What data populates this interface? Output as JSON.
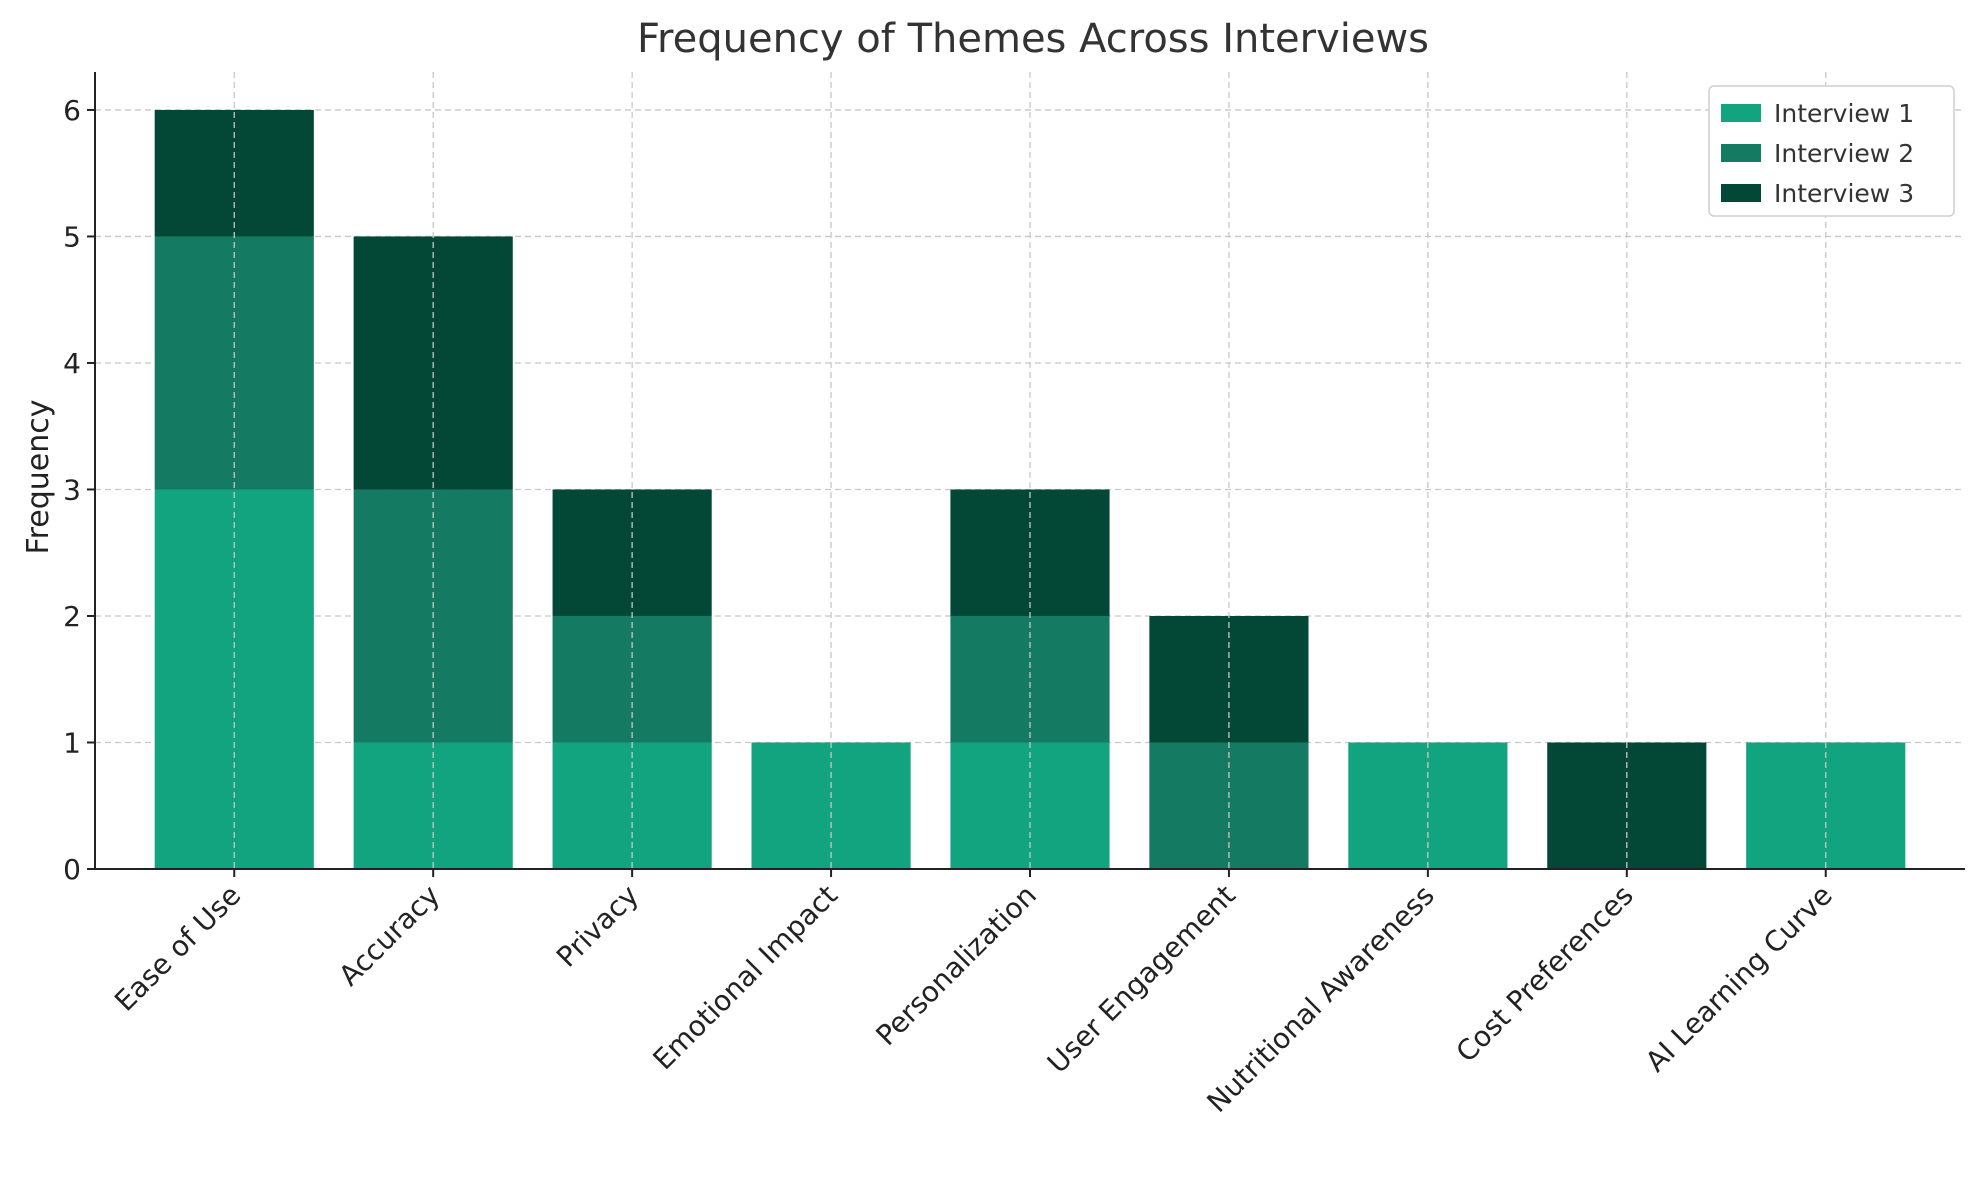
{
  "chart_data": {
    "type": "bar",
    "stacked": true,
    "title": "Frequency of Themes Across Interviews",
    "xlabel": "",
    "ylabel": "Frequency",
    "ylim": [
      0,
      6.3
    ],
    "yticks": [
      0,
      1,
      2,
      3,
      4,
      5,
      6
    ],
    "grid": true,
    "legend_position": "top-right",
    "categories": [
      "Ease of Use",
      "Accuracy",
      "Privacy",
      "Emotional Impact",
      "Personalization",
      "User Engagement",
      "Nutritional Awareness",
      "Cost Preferences",
      "AI Learning Curve"
    ],
    "series": [
      {
        "name": "Interview 1",
        "color": "#12a37f",
        "values": [
          3,
          1,
          1,
          1,
          1,
          0,
          1,
          0,
          1
        ]
      },
      {
        "name": "Interview 2",
        "color": "#147a62",
        "values": [
          2,
          2,
          1,
          0,
          1,
          1,
          0,
          0,
          0
        ]
      },
      {
        "name": "Interview 3",
        "color": "#034737",
        "values": [
          1,
          2,
          1,
          0,
          1,
          1,
          0,
          1,
          0
        ]
      }
    ]
  }
}
